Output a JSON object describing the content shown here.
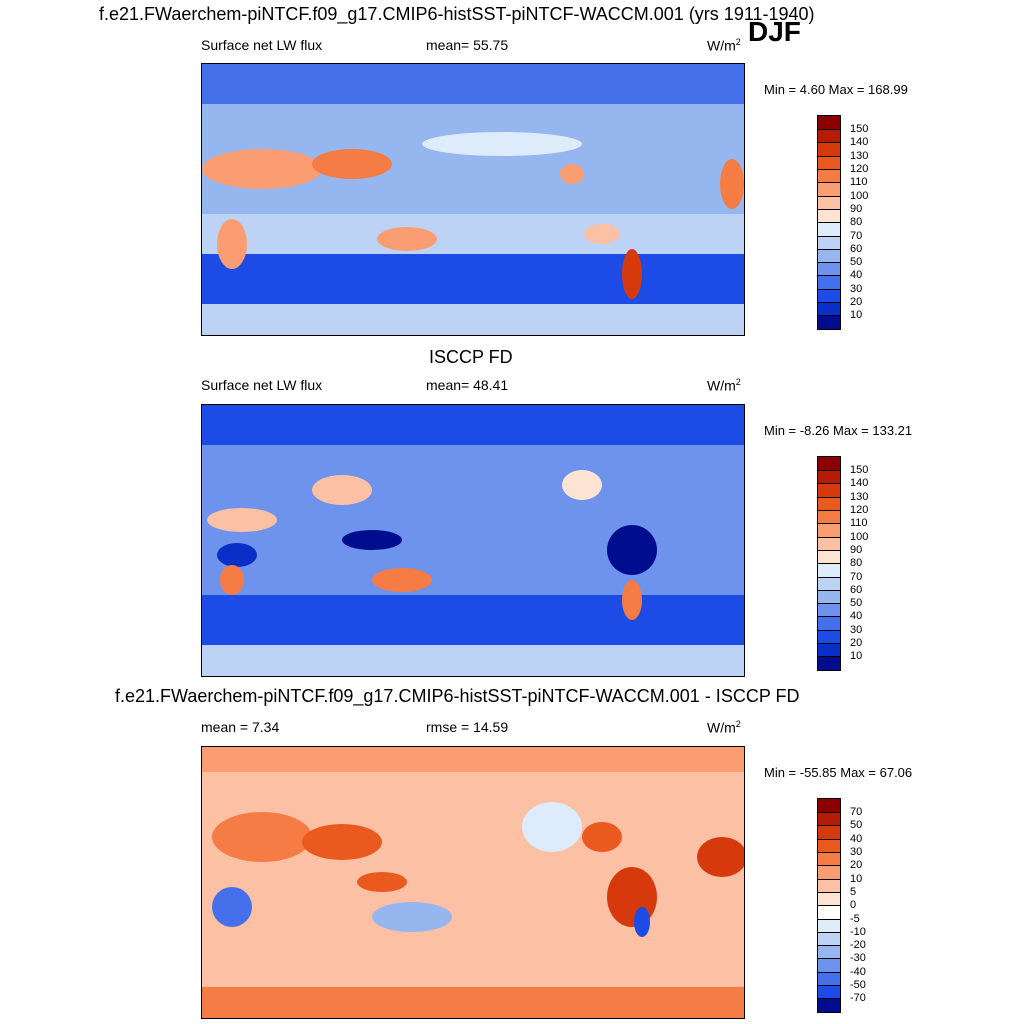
{
  "chart_data": [
    {
      "type": "heatmap",
      "title": "f.e21.FWaerchem-piNTCF.f09_g17.CMIP6-histSST-piNTCF-WACCM.001 (yrs 1911-1940)",
      "season": "DJF",
      "variable": "Surface net LW flux",
      "stat_text": "mean=  55.75",
      "units_base": "W/m",
      "units_exp": "2",
      "minmax": "Min =   4.60 Max = 168.99",
      "levels": [
        "150",
        "140",
        "130",
        "120",
        "110",
        "100",
        "90",
        "80",
        "70",
        "60",
        "50",
        "40",
        "30",
        "20",
        "10"
      ],
      "colors": [
        "#8b0000",
        "#b51b05",
        "#d63a0c",
        "#ea5a1f",
        "#f57c45",
        "#fb9d72",
        "#fcc0a4",
        "#fde3d2",
        "#deebfa",
        "#bcd3f5",
        "#96b6f0",
        "#6e93ec",
        "#4470eb",
        "#1c4be5",
        "#0a2ec8",
        "#000d8f"
      ]
    },
    {
      "type": "heatmap",
      "title": "ISCCP FD",
      "variable": "Surface net LW flux",
      "stat_text": "mean=  48.41",
      "units_base": "W/m",
      "units_exp": "2",
      "minmax": "Min =  -8.26 Max = 133.21",
      "levels": [
        "150",
        "140",
        "130",
        "120",
        "110",
        "100",
        "90",
        "80",
        "70",
        "60",
        "50",
        "40",
        "30",
        "20",
        "10"
      ],
      "colors": [
        "#8b0000",
        "#b51b05",
        "#d63a0c",
        "#ea5a1f",
        "#f57c45",
        "#fb9d72",
        "#fcc0a4",
        "#fde3d2",
        "#deebfa",
        "#bcd3f5",
        "#96b6f0",
        "#6e93ec",
        "#4470eb",
        "#1c4be5",
        "#0a2ec8",
        "#000d8f"
      ]
    },
    {
      "type": "heatmap",
      "title": "f.e21.FWaerchem-piNTCF.f09_g17.CMIP6-histSST-piNTCF-WACCM.001 - ISCCP FD",
      "stat_left": "mean =   7.34",
      "stat_mid": "rmse =  14.59",
      "units_base": "W/m",
      "units_exp": "2",
      "minmax": "Min = -55.85 Max =  67.06",
      "levels": [
        "70",
        "50",
        "40",
        "30",
        "20",
        "10",
        "5",
        "0",
        "-5",
        "-10",
        "-20",
        "-30",
        "-40",
        "-50",
        "-70"
      ],
      "colors": [
        "#8b0000",
        "#b51b05",
        "#d63a0c",
        "#ea5a1f",
        "#f57c45",
        "#fb9d72",
        "#fcc0a4",
        "#fde3d2",
        "#ffffff",
        "#deebfa",
        "#bcd3f5",
        "#96b6f0",
        "#6e93ec",
        "#4470eb",
        "#1c4be5",
        "#000d8f"
      ]
    }
  ]
}
